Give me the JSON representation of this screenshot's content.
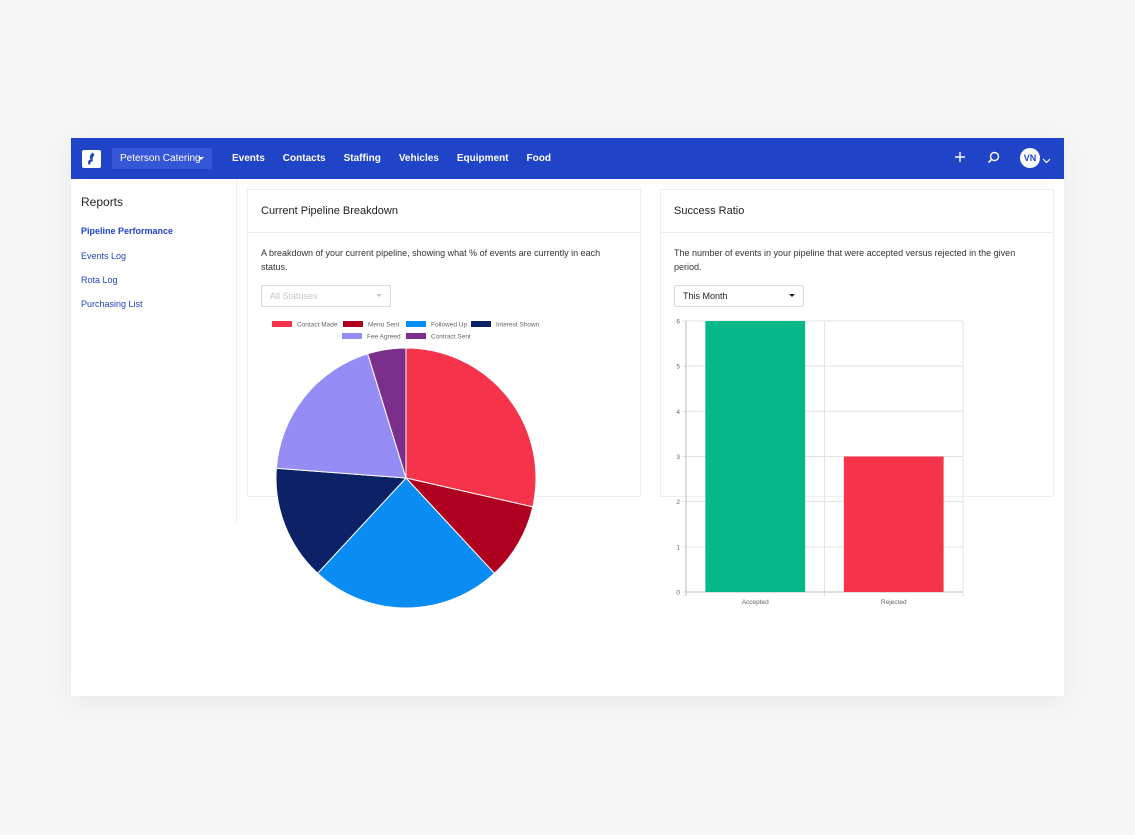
{
  "navbar": {
    "org_name": "Peterson Catering",
    "links": [
      "Events",
      "Contacts",
      "Staffing",
      "Vehicles",
      "Equipment",
      "Food"
    ],
    "avatar_initials": "VN",
    "colors": {
      "bar": "#1f44c8",
      "org_button": "#3556d6"
    }
  },
  "sidebar": {
    "title": "Reports",
    "items": [
      {
        "label": "Pipeline Performance",
        "active": true
      },
      {
        "label": "Events Log",
        "active": false
      },
      {
        "label": "Rota Log",
        "active": false
      },
      {
        "label": "Purchasing List",
        "active": false
      }
    ]
  },
  "pipeline_card": {
    "title": "Current Pipeline Breakdown",
    "description": "A breakdown of your current pipeline, showing what % of events are currently in each status.",
    "filter_placeholder": "All Statuses"
  },
  "success_card": {
    "title": "Success Ratio",
    "description": "The number of events in your pipeline that were accepted versus rejected in the given period.",
    "period_value": "This Month"
  },
  "chart_data": [
    {
      "type": "pie",
      "legend_position": "top",
      "slices": [
        {
          "label": "Contact Made",
          "value": 30,
          "color": "#f5334a"
        },
        {
          "label": "Menu Sent",
          "value": 10,
          "color": "#b00020"
        },
        {
          "label": "Followed Up",
          "value": 25,
          "color": "#0a8cf5"
        },
        {
          "label": "Interest Shown",
          "value": 15,
          "color": "#0c2166"
        },
        {
          "label": "Fee Agreed",
          "value": 20,
          "color": "#968cf5"
        },
        {
          "label": "Contract Sent",
          "value": 5,
          "color": "#7a2f8a"
        }
      ]
    },
    {
      "type": "bar",
      "categories": [
        "Accepted",
        "Rejected"
      ],
      "values": [
        6,
        3
      ],
      "colors": [
        "#04b88a",
        "#f5334a"
      ],
      "ylim": [
        0,
        6
      ],
      "yticks": [
        "0",
        "1",
        "2",
        "3",
        "4",
        "5",
        "6"
      ],
      "grid": true
    }
  ]
}
